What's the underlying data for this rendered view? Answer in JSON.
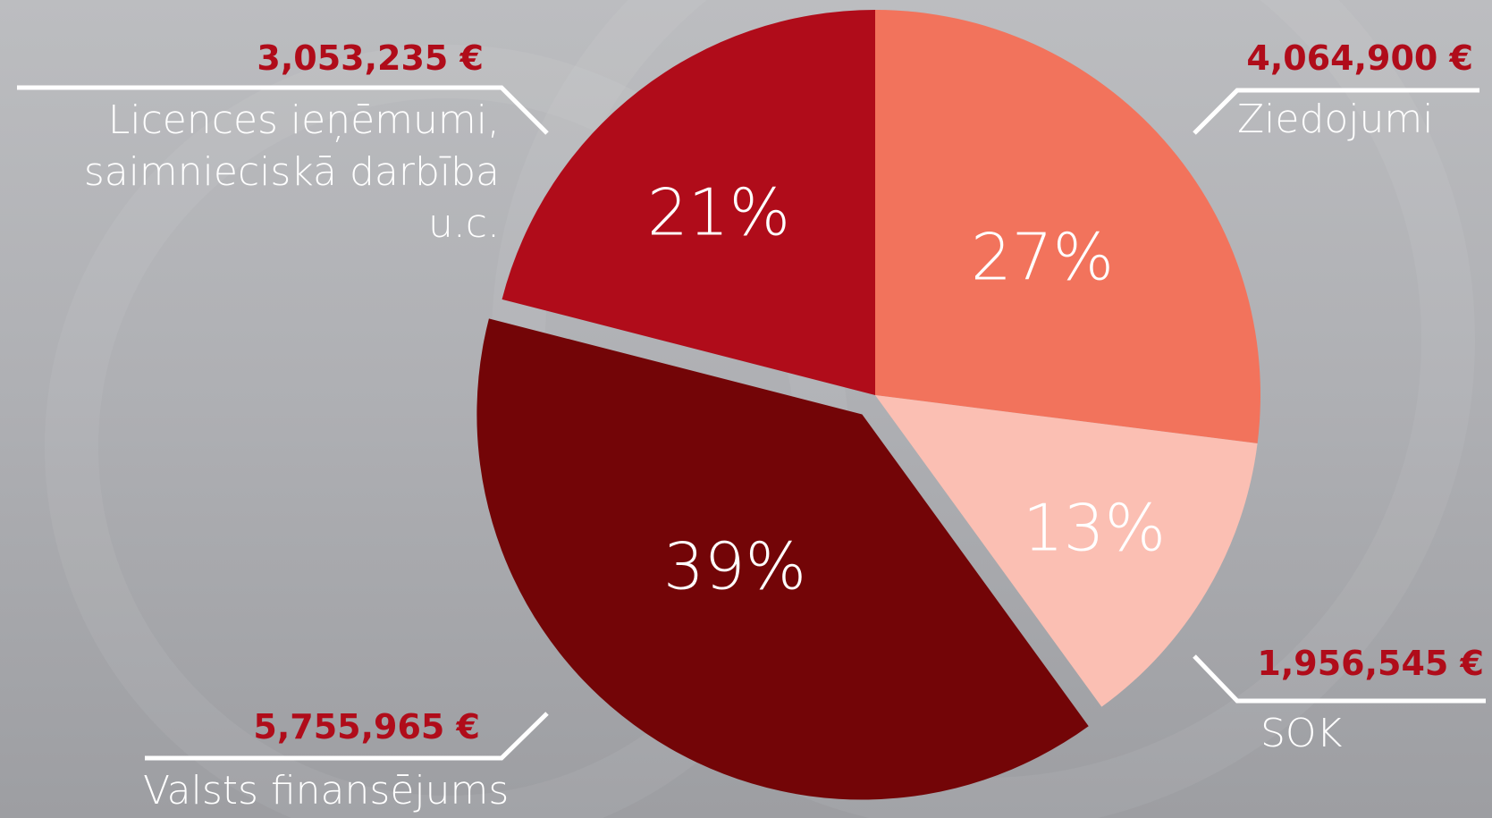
{
  "chart_data": {
    "type": "pie",
    "categories": [
      "Ziedojumi",
      "SOK",
      "Valsts finansējums",
      "Licences ieņēmumi,\nsaimnieciskā darbība u.c."
    ],
    "values": [
      27,
      13,
      39,
      21
    ],
    "value_labels": [
      "27%",
      "13%",
      "39%",
      "21%"
    ],
    "amount_labels": [
      "4,064,900 €",
      "1,956,545 €",
      "5,755,965 €",
      "3,053,235 €"
    ],
    "colors": [
      "#f2735c",
      "#fbbfb3",
      "#730507",
      "#b00c1a"
    ],
    "explode": [
      false,
      false,
      true,
      false
    ]
  }
}
